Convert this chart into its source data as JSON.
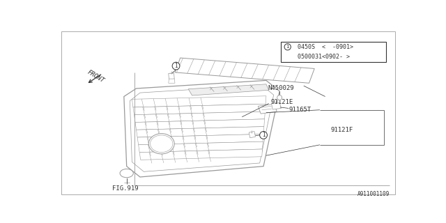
{
  "bg_color": "#ffffff",
  "line_color": "#999999",
  "dark_line": "#555555",
  "text_color": "#333333",
  "footer_text": "A911001109",
  "parts": {
    "part1_label": "91121E",
    "part2_label": "91165T",
    "part3_label": "91121F",
    "part4_label": "N450029",
    "part5_label": "FIG.919"
  },
  "legend_lines": [
    "0450S  <  -0901>",
    "0500031<0902- >"
  ],
  "front_label": "FRONT"
}
